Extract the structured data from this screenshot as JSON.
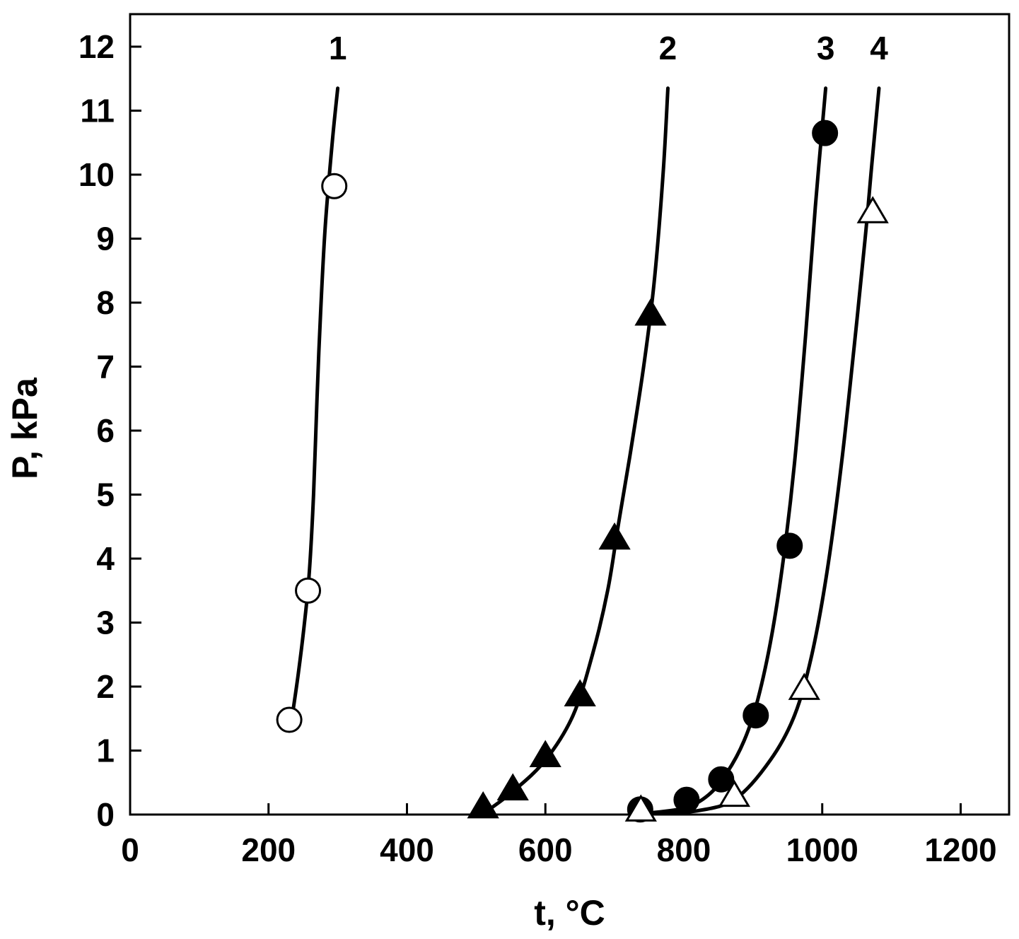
{
  "chart_data": {
    "type": "scatter",
    "xlabel": "t, °C",
    "ylabel": "P, kPa",
    "xlim": [
      0,
      1270
    ],
    "ylim": [
      0,
      12.5
    ],
    "x_ticks": [
      0,
      200,
      400,
      600,
      800,
      1000,
      1200
    ],
    "y_ticks": [
      0,
      1,
      2,
      3,
      4,
      5,
      6,
      7,
      8,
      9,
      10,
      11,
      12
    ],
    "grid": false,
    "legend": "none",
    "series": [
      {
        "name": "1",
        "marker": "open-circle",
        "points": [
          [
            230,
            1.48
          ],
          [
            257,
            3.5
          ],
          [
            295,
            9.82
          ]
        ],
        "curve": [
          [
            233,
            1.45
          ],
          [
            243,
            2.2
          ],
          [
            252,
            3.0
          ],
          [
            259,
            3.8
          ],
          [
            265,
            5.0
          ],
          [
            270,
            6.5
          ],
          [
            275,
            7.8
          ],
          [
            282,
            9.2
          ],
          [
            292,
            10.5
          ],
          [
            300,
            11.35
          ]
        ]
      },
      {
        "name": "2",
        "marker": "filled-triangle",
        "points": [
          [
            510,
            0.1
          ],
          [
            553,
            0.38
          ],
          [
            600,
            0.9
          ],
          [
            650,
            1.85
          ],
          [
            700,
            4.3
          ],
          [
            752,
            7.8
          ]
        ],
        "curve": [
          [
            515,
            0.05
          ],
          [
            553,
            0.36
          ],
          [
            600,
            0.85
          ],
          [
            640,
            1.55
          ],
          [
            668,
            2.5
          ],
          [
            690,
            3.5
          ],
          [
            705,
            4.5
          ],
          [
            722,
            5.6
          ],
          [
            742,
            7.0
          ],
          [
            757,
            8.3
          ],
          [
            770,
            10.0
          ],
          [
            777,
            11.35
          ]
        ]
      },
      {
        "name": "3",
        "marker": "filled-circle",
        "points": [
          [
            737,
            0.08
          ],
          [
            804,
            0.23
          ],
          [
            854,
            0.55
          ],
          [
            904,
            1.55
          ],
          [
            953,
            4.2
          ],
          [
            1004,
            10.65
          ]
        ],
        "curve": [
          [
            745,
            0.02
          ],
          [
            800,
            0.1
          ],
          [
            835,
            0.3
          ],
          [
            862,
            0.65
          ],
          [
            887,
            1.15
          ],
          [
            907,
            1.8
          ],
          [
            927,
            2.8
          ],
          [
            944,
            4.0
          ],
          [
            960,
            5.5
          ],
          [
            976,
            7.5
          ],
          [
            990,
            9.5
          ],
          [
            1005,
            11.35
          ]
        ]
      },
      {
        "name": "4",
        "marker": "open-triangle",
        "points": [
          [
            738,
            0.05
          ],
          [
            873,
            0.28
          ],
          [
            974,
            1.95
          ],
          [
            1073,
            9.4
          ]
        ],
        "curve": [
          [
            745,
            0.01
          ],
          [
            820,
            0.06
          ],
          [
            875,
            0.25
          ],
          [
            925,
            0.85
          ],
          [
            960,
            1.55
          ],
          [
            985,
            2.5
          ],
          [
            1007,
            3.8
          ],
          [
            1028,
            5.5
          ],
          [
            1046,
            7.3
          ],
          [
            1062,
            9.0
          ],
          [
            1072,
            10.2
          ],
          [
            1082,
            11.35
          ]
        ]
      }
    ]
  }
}
